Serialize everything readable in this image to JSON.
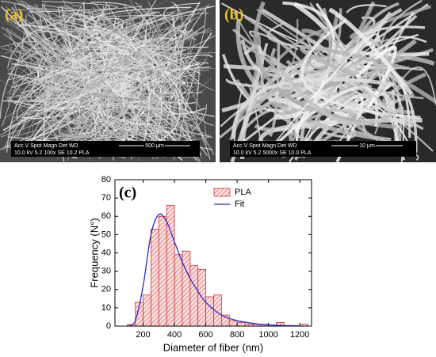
{
  "panels": [
    {
      "label": "(a)",
      "info_header": "Acc.V  Spot Magn    Det  WD",
      "info_values": "10.0 kV 5.2   100x    SE  10.2  PLA",
      "scale": "500 μm"
    },
    {
      "label": "(b)",
      "info_header": "Acc.V  Spot Magn    Det  WD",
      "info_values": "10.0 kV 5.2   5000x   SE  10.0  PLA",
      "scale": "10 μm"
    }
  ],
  "chart_data": {
    "type": "histogram",
    "panel_label": "(c)",
    "xlabel": "Diameter of fiber (nm)",
    "ylabel": "Frequency (N°)",
    "name": "PLA",
    "color": "#d03030",
    "bins": [
      100,
      150,
      200,
      250,
      300,
      350,
      400,
      450,
      500,
      550,
      600,
      650,
      700,
      750,
      800,
      850,
      900,
      950,
      1000,
      1050,
      1100,
      1150,
      1200,
      1250
    ],
    "values": [
      1,
      13,
      17,
      53,
      60,
      66,
      39,
      41,
      33,
      31,
      16,
      17,
      6,
      3,
      2,
      1,
      1,
      1,
      0,
      2,
      0,
      0,
      1
    ],
    "fit": {
      "name": "Fit",
      "color": "#2a2ac8",
      "x": [
        100,
        150,
        200,
        250,
        300,
        350,
        400,
        450,
        500,
        550,
        600,
        700,
        800,
        900,
        1000,
        1100,
        1200
      ],
      "values": [
        0,
        3,
        22,
        50,
        61,
        57,
        46,
        35,
        26,
        19,
        13,
        6,
        3,
        1.5,
        0.7,
        0.3,
        0.1
      ]
    },
    "xlim": [
      20,
      1275
    ],
    "ylim": [
      0,
      80
    ],
    "xticks": [
      200,
      400,
      600,
      800,
      1000,
      1200
    ],
    "yticks": [
      0,
      10,
      20,
      30,
      40,
      50,
      60,
      70,
      80
    ]
  }
}
